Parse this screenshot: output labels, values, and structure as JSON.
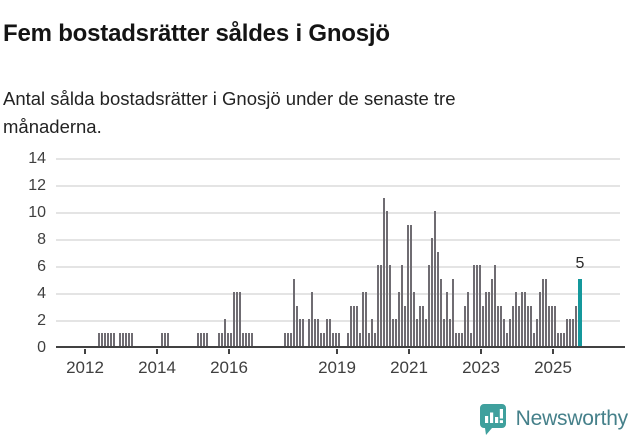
{
  "header": {
    "title": "Fem bostadsrätter såldes i Gnosjö",
    "subtitle_line1": "Antal sålda bostadsrätter i Gnosjö under de senaste tre",
    "subtitle_line2": "månaderna."
  },
  "chart_data": {
    "type": "bar",
    "title": "Fem bostadsrätter såldes i Gnosjö",
    "xlabel": "",
    "ylabel": "",
    "frequency": "monthly",
    "start_month": "2011-04",
    "end_month": "2025-10",
    "values": [
      0,
      0,
      0,
      0,
      0,
      0,
      0,
      0,
      0,
      0,
      0,
      0,
      0,
      0,
      1,
      1,
      1,
      1,
      1,
      1,
      0,
      1,
      1,
      1,
      1,
      1,
      0,
      0,
      0,
      0,
      0,
      0,
      0,
      0,
      0,
      1,
      1,
      1,
      0,
      0,
      0,
      0,
      0,
      0,
      0,
      0,
      0,
      1,
      1,
      1,
      1,
      0,
      0,
      0,
      1,
      1,
      2,
      1,
      1,
      4,
      4,
      4,
      1,
      1,
      1,
      1,
      0,
      0,
      0,
      0,
      0,
      0,
      0,
      0,
      0,
      0,
      1,
      1,
      1,
      5,
      3,
      2,
      2,
      0,
      2,
      4,
      2,
      2,
      1,
      1,
      2,
      2,
      1,
      1,
      1,
      0,
      0,
      1,
      3,
      3,
      3,
      1,
      4,
      4,
      1,
      2,
      1,
      6,
      6,
      11,
      10,
      6,
      2,
      2,
      4,
      6,
      3,
      9,
      9,
      4,
      2,
      3,
      3,
      2,
      6,
      8,
      10,
      7,
      5,
      2,
      4,
      2,
      5,
      1,
      1,
      1,
      3,
      4,
      1,
      6,
      6,
      6,
      3,
      4,
      4,
      5,
      6,
      3,
      3,
      2,
      1,
      2,
      3,
      4,
      3,
      4,
      4,
      3,
      3,
      1,
      2,
      4,
      5,
      5,
      3,
      3,
      3,
      1,
      1,
      1,
      2,
      2,
      2,
      3,
      5
    ],
    "ylim": [
      0,
      14
    ],
    "yticks": [
      0,
      2,
      4,
      6,
      8,
      10,
      12,
      14
    ],
    "x_tick_labels": [
      "2012",
      "2014",
      "2016",
      "2019",
      "2021",
      "2023",
      "2025"
    ],
    "x_tick_indices": [
      9,
      33,
      57,
      93,
      117,
      141,
      165
    ],
    "grid": true,
    "legend": false,
    "highlight": {
      "index": 174,
      "label": "5",
      "value": 5
    },
    "colors": {
      "bar": "#6f6c72",
      "highlight": "#14989c",
      "gridline": "#e4e4e4",
      "axis": "#414141"
    }
  },
  "footer": {
    "brand": "Newsworthy",
    "brand_text_color": "#45808a",
    "brand_icon_color": "#3fa09d"
  }
}
